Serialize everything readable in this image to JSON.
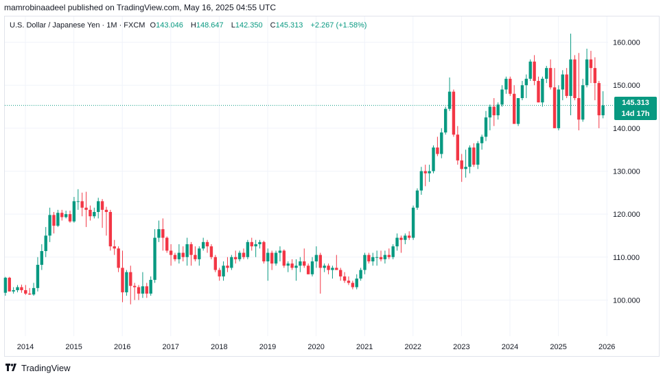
{
  "header": {
    "publisher_line": "mamrobinaadeel published on TradingView.com, May 16, 2025 04:55 UTC"
  },
  "legend": {
    "symbol": "U.S. Dollar / Japanese Yen · 1M · FXCM",
    "open_label": "O",
    "open": "143.046",
    "high_label": "H",
    "high": "148.647",
    "low_label": "L",
    "low": "142.350",
    "close_label": "C",
    "close": "145.313",
    "change": "+2.267 (+1.58%)"
  },
  "price_badge": {
    "price": "145.313",
    "countdown": "14d 17h"
  },
  "footer": {
    "brand": "TradingView",
    "logo_icon": "tradingview-logo-icon"
  },
  "colors": {
    "up": "#089981",
    "down": "#F23645",
    "grid": "#f0f3fa",
    "text": "#131722"
  },
  "chart_data": {
    "type": "candlestick",
    "title": "U.S. Dollar / Japanese Yen · 1M · FXCM",
    "x_ticks": [
      "2014",
      "2015",
      "2016",
      "2017",
      "2018",
      "2019",
      "2020",
      "2021",
      "2022",
      "2023",
      "2024",
      "2025",
      "2026"
    ],
    "y_ticks": [
      "100.000",
      "110.000",
      "120.000",
      "130.000",
      "140.000",
      "150.000",
      "160.000"
    ],
    "ylim": [
      91.6,
      166
    ],
    "last_price": 145.313,
    "grid": true,
    "candles": [
      {
        "t": "2013-11",
        "o": 98.3,
        "h": 102.5,
        "l": 96.6,
        "c": 98.2
      },
      {
        "t": "2013-12",
        "o": 98.2,
        "h": 99.4,
        "l": 97.0,
        "c": 98.6
      },
      {
        "t": "2014-01",
        "o": 98.6,
        "h": 102.0,
        "l": 97.2,
        "c": 101.7
      },
      {
        "t": "2014-02",
        "o": 101.7,
        "h": 105.4,
        "l": 101.0,
        "c": 105.2
      },
      {
        "t": "2014-03",
        "o": 105.2,
        "h": 105.4,
        "l": 102.0,
        "c": 102.0
      },
      {
        "t": "2014-04",
        "o": 102.0,
        "h": 103.0,
        "l": 101.5,
        "c": 102.3
      },
      {
        "t": "2014-05",
        "o": 102.3,
        "h": 103.5,
        "l": 101.8,
        "c": 103.0
      },
      {
        "t": "2014-06",
        "o": 103.0,
        "h": 103.6,
        "l": 101.7,
        "c": 102.3
      },
      {
        "t": "2014-07",
        "o": 102.3,
        "h": 103.5,
        "l": 101.2,
        "c": 101.5
      },
      {
        "t": "2014-08",
        "o": 101.5,
        "h": 102.8,
        "l": 101.2,
        "c": 101.3
      },
      {
        "t": "2014-09",
        "o": 101.3,
        "h": 104.0,
        "l": 101.0,
        "c": 102.8
      },
      {
        "t": "2014-10",
        "o": 102.8,
        "h": 110.0,
        "l": 102.0,
        "c": 108.2
      },
      {
        "t": "2014-11",
        "o": 108.2,
        "h": 113.0,
        "l": 107.0,
        "c": 111.4
      },
      {
        "t": "2014-12",
        "o": 111.4,
        "h": 117.0,
        "l": 110.0,
        "c": 115.0
      },
      {
        "t": "2015-01",
        "o": 115.0,
        "h": 121.5,
        "l": 113.5,
        "c": 119.8
      },
      {
        "t": "2015-02",
        "o": 119.8,
        "h": 120.5,
        "l": 115.5,
        "c": 117.3
      },
      {
        "t": "2015-03",
        "o": 117.3,
        "h": 121.0,
        "l": 117.0,
        "c": 120.3
      },
      {
        "t": "2015-04",
        "o": 120.3,
        "h": 121.0,
        "l": 118.5,
        "c": 119.3
      },
      {
        "t": "2015-05",
        "o": 119.3,
        "h": 120.8,
        "l": 119.0,
        "c": 120.0
      },
      {
        "t": "2015-06",
        "o": 120.0,
        "h": 120.8,
        "l": 118.0,
        "c": 118.3
      },
      {
        "t": "2015-07",
        "o": 118.3,
        "h": 124.0,
        "l": 118.0,
        "c": 123.0
      },
      {
        "t": "2015-08",
        "o": 123.0,
        "h": 125.8,
        "l": 121.0,
        "c": 123.0
      },
      {
        "t": "2015-09",
        "o": 123.0,
        "h": 125.0,
        "l": 119.5,
        "c": 121.5
      },
      {
        "t": "2015-10",
        "o": 121.5,
        "h": 125.2,
        "l": 117.0,
        "c": 121.0
      },
      {
        "t": "2015-11",
        "o": 121.0,
        "h": 122.0,
        "l": 118.5,
        "c": 119.5
      },
      {
        "t": "2015-12",
        "o": 119.5,
        "h": 121.5,
        "l": 119.0,
        "c": 120.5
      },
      {
        "t": "2016-01",
        "o": 120.5,
        "h": 123.8,
        "l": 119.0,
        "c": 123.0
      },
      {
        "t": "2016-02",
        "o": 123.0,
        "h": 123.5,
        "l": 116.8,
        "c": 121.0
      },
      {
        "t": "2016-03",
        "o": 121.0,
        "h": 121.7,
        "l": 115.0,
        "c": 120.5
      },
      {
        "t": "2016-04",
        "o": 120.5,
        "h": 121.0,
        "l": 111.5,
        "c": 112.5
      },
      {
        "t": "2016-05",
        "o": 112.5,
        "h": 114.0,
        "l": 110.5,
        "c": 112.0
      },
      {
        "t": "2016-06",
        "o": 112.0,
        "h": 112.5,
        "l": 106.5,
        "c": 107.5
      },
      {
        "t": "2016-07",
        "o": 107.5,
        "h": 111.5,
        "l": 99.5,
        "c": 101.8
      },
      {
        "t": "2016-08",
        "o": 101.8,
        "h": 107.0,
        "l": 101.0,
        "c": 106.5
      },
      {
        "t": "2016-09",
        "o": 106.5,
        "h": 108.0,
        "l": 99.0,
        "c": 103.3
      },
      {
        "t": "2016-10",
        "o": 103.3,
        "h": 104.0,
        "l": 100.0,
        "c": 103.0
      },
      {
        "t": "2016-11",
        "o": 103.0,
        "h": 103.5,
        "l": 100.0,
        "c": 101.5
      },
      {
        "t": "2016-12",
        "o": 101.5,
        "h": 106.5,
        "l": 100.5,
        "c": 103.2
      },
      {
        "t": "2017-01",
        "o": 103.2,
        "h": 104.0,
        "l": 100.5,
        "c": 101.5
      },
      {
        "t": "2017-02",
        "o": 101.5,
        "h": 105.5,
        "l": 101.0,
        "c": 104.7
      },
      {
        "t": "2017-03",
        "o": 104.7,
        "h": 116.5,
        "l": 104.0,
        "c": 114.5
      },
      {
        "t": "2017-04",
        "o": 114.5,
        "h": 118.5,
        "l": 113.5,
        "c": 116.5
      },
      {
        "t": "2017-05",
        "o": 116.5,
        "h": 119.0,
        "l": 111.5,
        "c": 114.5
      },
      {
        "t": "2017-06",
        "o": 114.5,
        "h": 114.8,
        "l": 111.0,
        "c": 111.5
      },
      {
        "t": "2017-07",
        "o": 111.5,
        "h": 113.0,
        "l": 108.0,
        "c": 110.5
      },
      {
        "t": "2017-08",
        "o": 110.5,
        "h": 111.0,
        "l": 109.0,
        "c": 109.5
      },
      {
        "t": "2017-09",
        "o": 109.5,
        "h": 113.0,
        "l": 108.5,
        "c": 111.0
      },
      {
        "t": "2017-10",
        "o": 111.0,
        "h": 112.5,
        "l": 109.0,
        "c": 110.0
      },
      {
        "t": "2017-11",
        "o": 110.0,
        "h": 114.5,
        "l": 108.0,
        "c": 113.0
      },
      {
        "t": "2017-12",
        "o": 113.0,
        "h": 113.5,
        "l": 108.0,
        "c": 110.5
      },
      {
        "t": "2018-01",
        "o": 110.5,
        "h": 112.5,
        "l": 109.0,
        "c": 109.5
      },
      {
        "t": "2018-02",
        "o": 109.5,
        "h": 112.5,
        "l": 108.0,
        "c": 112.0
      },
      {
        "t": "2018-03",
        "o": 112.0,
        "h": 114.5,
        "l": 111.5,
        "c": 113.5
      },
      {
        "t": "2018-04",
        "o": 113.5,
        "h": 114.0,
        "l": 111.0,
        "c": 112.5
      },
      {
        "t": "2018-05",
        "o": 112.5,
        "h": 113.0,
        "l": 109.5,
        "c": 110.0
      },
      {
        "t": "2018-06",
        "o": 110.0,
        "h": 110.5,
        "l": 106.5,
        "c": 107.0
      },
      {
        "t": "2018-07",
        "o": 107.0,
        "h": 107.5,
        "l": 104.5,
        "c": 105.5
      },
      {
        "t": "2018-08",
        "o": 105.5,
        "h": 109.0,
        "l": 104.5,
        "c": 108.0
      },
      {
        "t": "2018-09",
        "o": 108.0,
        "h": 110.0,
        "l": 106.5,
        "c": 107.5
      },
      {
        "t": "2018-10",
        "o": 107.5,
        "h": 110.5,
        "l": 107.0,
        "c": 110.0
      },
      {
        "t": "2018-11",
        "o": 110.0,
        "h": 111.5,
        "l": 108.5,
        "c": 109.5
      },
      {
        "t": "2018-12",
        "o": 109.5,
        "h": 111.5,
        "l": 109.0,
        "c": 111.0
      },
      {
        "t": "2019-01",
        "o": 111.0,
        "h": 112.0,
        "l": 109.5,
        "c": 110.0
      },
      {
        "t": "2019-02",
        "o": 110.0,
        "h": 114.0,
        "l": 109.5,
        "c": 113.5
      },
      {
        "t": "2019-03",
        "o": 113.5,
        "h": 114.5,
        "l": 111.5,
        "c": 112.5
      },
      {
        "t": "2019-04",
        "o": 112.5,
        "h": 114.0,
        "l": 110.0,
        "c": 113.0
      },
      {
        "t": "2019-05",
        "o": 113.0,
        "h": 114.0,
        "l": 112.0,
        "c": 113.5
      },
      {
        "t": "2019-06",
        "o": 113.5,
        "h": 113.8,
        "l": 108.5,
        "c": 109.0
      },
      {
        "t": "2019-07",
        "o": 109.0,
        "h": 112.0,
        "l": 104.5,
        "c": 111.0
      },
      {
        "t": "2019-08",
        "o": 111.0,
        "h": 111.5,
        "l": 107.0,
        "c": 108.5
      },
      {
        "t": "2019-09",
        "o": 108.5,
        "h": 111.5,
        "l": 108.0,
        "c": 111.0
      },
      {
        "t": "2019-10",
        "o": 111.0,
        "h": 112.5,
        "l": 109.0,
        "c": 111.5
      },
      {
        "t": "2019-11",
        "o": 111.5,
        "h": 111.8,
        "l": 107.5,
        "c": 108.0
      },
      {
        "t": "2019-12",
        "o": 108.0,
        "h": 109.0,
        "l": 106.5,
        "c": 108.5
      },
      {
        "t": "2020-01",
        "o": 108.5,
        "h": 109.5,
        "l": 107.0,
        "c": 107.5
      },
      {
        "t": "2020-02",
        "o": 107.5,
        "h": 109.5,
        "l": 104.5,
        "c": 108.0
      },
      {
        "t": "2020-03",
        "o": 108.0,
        "h": 110.0,
        "l": 106.5,
        "c": 109.0
      },
      {
        "t": "2020-04",
        "o": 109.0,
        "h": 112.0,
        "l": 107.5,
        "c": 108.0
      },
      {
        "t": "2020-05",
        "o": 108.0,
        "h": 108.5,
        "l": 106.0,
        "c": 106.0
      },
      {
        "t": "2020-06",
        "o": 106.0,
        "h": 110.0,
        "l": 105.5,
        "c": 109.0
      },
      {
        "t": "2020-07",
        "o": 109.0,
        "h": 112.5,
        "l": 107.5,
        "c": 110.5
      },
      {
        "t": "2020-08",
        "o": 110.5,
        "h": 111.0,
        "l": 101.5,
        "c": 107.5
      },
      {
        "t": "2020-09",
        "o": 107.5,
        "h": 108.5,
        "l": 106.5,
        "c": 108.0
      },
      {
        "t": "2020-10",
        "o": 108.0,
        "h": 108.5,
        "l": 106.0,
        "c": 107.0
      },
      {
        "t": "2020-11",
        "o": 107.0,
        "h": 108.0,
        "l": 105.0,
        "c": 107.5
      },
      {
        "t": "2020-12",
        "o": 107.5,
        "h": 110.5,
        "l": 107.0,
        "c": 107.0
      },
      {
        "t": "2021-01",
        "o": 107.0,
        "h": 107.5,
        "l": 104.5,
        "c": 105.5
      },
      {
        "t": "2021-02",
        "o": 105.5,
        "h": 106.5,
        "l": 104.0,
        "c": 104.5
      },
      {
        "t": "2021-03",
        "o": 104.5,
        "h": 105.5,
        "l": 103.5,
        "c": 104.0
      },
      {
        "t": "2021-04",
        "o": 104.0,
        "h": 104.5,
        "l": 102.5,
        "c": 103.0
      },
      {
        "t": "2021-05",
        "o": 103.0,
        "h": 106.0,
        "l": 102.5,
        "c": 105.0
      },
      {
        "t": "2021-06",
        "o": 105.0,
        "h": 107.5,
        "l": 104.5,
        "c": 107.0
      },
      {
        "t": "2021-07",
        "o": 107.0,
        "h": 111.0,
        "l": 106.0,
        "c": 110.5
      },
      {
        "t": "2021-08",
        "o": 110.5,
        "h": 111.0,
        "l": 108.5,
        "c": 109.0
      },
      {
        "t": "2021-09",
        "o": 109.0,
        "h": 111.0,
        "l": 108.0,
        "c": 110.0
      },
      {
        "t": "2021-10",
        "o": 110.0,
        "h": 111.5,
        "l": 108.0,
        "c": 110.0
      },
      {
        "t": "2021-11",
        "o": 110.0,
        "h": 111.5,
        "l": 109.0,
        "c": 109.5
      },
      {
        "t": "2021-12",
        "o": 109.5,
        "h": 111.5,
        "l": 108.5,
        "c": 110.5
      },
      {
        "t": "2022-01",
        "o": 110.5,
        "h": 112.0,
        "l": 109.5,
        "c": 110.0
      },
      {
        "t": "2022-02",
        "o": 110.0,
        "h": 113.0,
        "l": 109.5,
        "c": 112.5
      },
      {
        "t": "2022-03",
        "o": 112.5,
        "h": 115.5,
        "l": 111.5,
        "c": 114.5
      },
      {
        "t": "2022-04",
        "o": 114.5,
        "h": 115.0,
        "l": 111.0,
        "c": 114.0
      },
      {
        "t": "2022-05",
        "o": 114.0,
        "h": 115.5,
        "l": 113.0,
        "c": 115.0
      },
      {
        "t": "2022-06",
        "o": 115.0,
        "h": 116.0,
        "l": 114.0,
        "c": 114.5
      },
      {
        "t": "2022-07",
        "o": 114.5,
        "h": 122.0,
        "l": 114.0,
        "c": 121.5
      },
      {
        "t": "2022-08",
        "o": 121.5,
        "h": 126.0,
        "l": 121.0,
        "c": 125.5
      },
      {
        "t": "2022-09",
        "o": 125.5,
        "h": 131.0,
        "l": 124.5,
        "c": 130.0
      },
      {
        "t": "2022-10",
        "o": 130.0,
        "h": 131.5,
        "l": 126.5,
        "c": 129.5
      },
      {
        "t": "2022-11",
        "o": 129.5,
        "h": 131.5,
        "l": 127.5,
        "c": 130.0
      },
      {
        "t": "2022-12",
        "o": 130.0,
        "h": 136.0,
        "l": 129.5,
        "c": 135.5
      },
      {
        "t": "2023-01",
        "o": 135.5,
        "h": 138.0,
        "l": 133.5,
        "c": 134.0
      },
      {
        "t": "2023-02",
        "o": 134.0,
        "h": 140.0,
        "l": 133.0,
        "c": 139.0
      },
      {
        "t": "2023-03",
        "o": 139.0,
        "h": 145.0,
        "l": 138.5,
        "c": 144.5
      },
      {
        "t": "2023-04",
        "o": 144.5,
        "h": 151.8,
        "l": 144.0,
        "c": 148.5
      },
      {
        "t": "2023-05",
        "o": 148.5,
        "h": 149.0,
        "l": 138.0,
        "c": 138.5
      },
      {
        "t": "2023-06",
        "o": 138.5,
        "h": 140.5,
        "l": 131.5,
        "c": 132.5
      },
      {
        "t": "2023-07",
        "o": 132.5,
        "h": 134.0,
        "l": 127.5,
        "c": 130.5
      },
      {
        "t": "2023-08",
        "o": 130.5,
        "h": 135.0,
        "l": 128.5,
        "c": 131.0
      },
      {
        "t": "2023-09",
        "o": 131.0,
        "h": 136.0,
        "l": 129.5,
        "c": 135.5
      },
      {
        "t": "2023-10",
        "o": 135.5,
        "h": 136.5,
        "l": 131.0,
        "c": 131.5
      },
      {
        "t": "2023-11",
        "o": 131.5,
        "h": 137.0,
        "l": 130.5,
        "c": 136.5
      },
      {
        "t": "2023-12",
        "o": 136.5,
        "h": 138.5,
        "l": 135.0,
        "c": 138.0
      },
      {
        "t": "2024-01",
        "o": 138.0,
        "h": 144.0,
        "l": 137.0,
        "c": 142.5
      },
      {
        "t": "2024-02",
        "o": 142.5,
        "h": 145.5,
        "l": 139.5,
        "c": 145.0
      },
      {
        "t": "2024-03",
        "o": 145.0,
        "h": 147.0,
        "l": 140.5,
        "c": 143.0
      },
      {
        "t": "2024-04",
        "o": 143.0,
        "h": 146.0,
        "l": 142.0,
        "c": 145.5
      },
      {
        "t": "2024-05",
        "o": 145.5,
        "h": 150.0,
        "l": 145.0,
        "c": 149.0
      },
      {
        "t": "2024-06",
        "o": 149.0,
        "h": 152.0,
        "l": 148.0,
        "c": 151.5
      },
      {
        "t": "2024-07",
        "o": 151.5,
        "h": 152.0,
        "l": 147.5,
        "c": 148.0
      },
      {
        "t": "2024-08",
        "o": 148.0,
        "h": 150.0,
        "l": 141.0,
        "c": 141.0
      },
      {
        "t": "2024-09",
        "o": 141.0,
        "h": 147.0,
        "l": 140.5,
        "c": 147.0
      },
      {
        "t": "2024-10",
        "o": 147.0,
        "h": 151.0,
        "l": 146.5,
        "c": 150.0
      },
      {
        "t": "2024-11",
        "o": 150.0,
        "h": 152.5,
        "l": 147.0,
        "c": 151.5
      },
      {
        "t": "2024-12",
        "o": 151.5,
        "h": 156.0,
        "l": 151.0,
        "c": 155.5
      },
      {
        "t": "2025-01",
        "o": 155.5,
        "h": 157.0,
        "l": 150.0,
        "c": 151.0
      },
      {
        "t": "2025-02",
        "o": 151.0,
        "h": 152.0,
        "l": 146.0,
        "c": 146.0
      },
      {
        "t": "2025-03",
        "o": 146.0,
        "h": 152.0,
        "l": 145.0,
        "c": 151.5
      },
      {
        "t": "2025-04",
        "o": 151.5,
        "h": 154.5,
        "l": 150.5,
        "c": 154.0
      },
      {
        "t": "2025-05",
        "o": 154.0,
        "h": 156.0,
        "l": 149.0,
        "c": 149.5
      },
      {
        "t": "2025-06",
        "o": 149.5,
        "h": 154.0,
        "l": 140.0,
        "c": 140.0
      },
      {
        "t": "2025-07",
        "o": 140.0,
        "h": 150.0,
        "l": 139.5,
        "c": 149.0
      },
      {
        "t": "2025-08",
        "o": 149.0,
        "h": 153.5,
        "l": 146.5,
        "c": 152.5
      },
      {
        "t": "2025-09",
        "o": 152.5,
        "h": 154.0,
        "l": 147.0,
        "c": 147.5
      },
      {
        "t": "2025-10",
        "o": 147.5,
        "h": 162.0,
        "l": 143.0,
        "c": 156.0
      },
      {
        "t": "2025-11",
        "o": 156.0,
        "h": 157.0,
        "l": 146.5,
        "c": 147.0
      },
      {
        "t": "2025-12",
        "o": 147.0,
        "h": 157.5,
        "l": 139.5,
        "c": 142.0
      },
      {
        "t": "2026-01",
        "o": 142.0,
        "h": 151.5,
        "l": 141.5,
        "c": 150.0
      },
      {
        "t": "2026-02",
        "o": 150.0,
        "h": 158.5,
        "l": 149.5,
        "c": 156.0
      },
      {
        "t": "2026-03",
        "o": 156.0,
        "h": 158.0,
        "l": 150.5,
        "c": 154.0
      },
      {
        "t": "2026-04",
        "o": 154.0,
        "h": 156.5,
        "l": 146.5,
        "c": 150.5
      },
      {
        "t": "2026-05",
        "o": 150.5,
        "h": 151.0,
        "l": 140.0,
        "c": 143.0
      },
      {
        "t": "2026-06",
        "o": 143.0,
        "h": 148.6,
        "l": 142.3,
        "c": 145.3
      }
    ]
  }
}
